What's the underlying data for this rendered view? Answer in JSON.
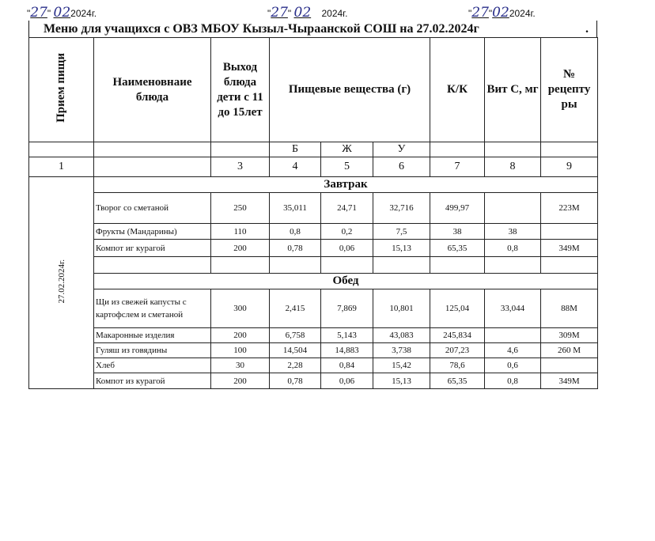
{
  "approvals": [
    {
      "day": "27",
      "month": "02",
      "year": "2024г."
    },
    {
      "day": "27",
      "month": "02",
      "year": "2024г."
    },
    {
      "day": "27",
      "month": "02",
      "year": "2024г."
    }
  ],
  "title": "Меню для учащихся с ОВЗ МБОУ Кызыл-Чыраанской СОШ на 27.02.2024г",
  "title_dot": ".",
  "headers": {
    "meal": "Прием пищи",
    "dish": "Наименовнаие блюда",
    "yield": "Выход блюда дети с 11 до 15лет",
    "nutrients": "Пищевые вещества (г)",
    "kcal": "К/К",
    "vitc": "Вит С, мг",
    "recipe": "№ рецепту ры",
    "b": "Б",
    "zh": "Ж",
    "u": "У",
    "nums": [
      "1",
      "",
      "3",
      "4",
      "5",
      "6",
      "7",
      "8",
      "9"
    ]
  },
  "date_label": "27.02.2024г.",
  "sections": [
    {
      "name": "Завтрак",
      "rows": [
        [
          "Творог со сметаной",
          "250",
          "35,011",
          "24,71",
          "32,716",
          "499,97",
          "",
          "223М"
        ],
        [
          "Фрукты (Мандарины)",
          "110",
          "0,8",
          "0,2",
          "7,5",
          "38",
          "38",
          ""
        ],
        [
          "Компот иг курагой",
          "200",
          "0,78",
          "0,06",
          "15,13",
          "65,35",
          "0,8",
          "349М"
        ],
        [
          "",
          "",
          "",
          "",
          "",
          "",
          "",
          ""
        ]
      ]
    },
    {
      "name": "Обед",
      "rows": [
        [
          "Щи из свежей капусты с картофслем и сметаной",
          "300",
          "2,415",
          "7,869",
          "10,801",
          "125,04",
          "33,044",
          "88М"
        ],
        [
          "Макаронные изделия",
          "200",
          "6,758",
          "5,143",
          "43,083",
          "245,834",
          "",
          "309М"
        ],
        [
          "Гуляш из говядины",
          "100",
          "14,504",
          "14,883",
          "3,738",
          "207,23",
          "4,6",
          "260 М"
        ],
        [
          "Хлеб",
          "30",
          "2,28",
          "0,84",
          "15,42",
          "78,6",
          "0,6",
          ""
        ],
        [
          "Компот из курагой",
          "200",
          "0,78",
          "0,06",
          "15,13",
          "65,35",
          "0,8",
          "349М"
        ]
      ]
    }
  ]
}
